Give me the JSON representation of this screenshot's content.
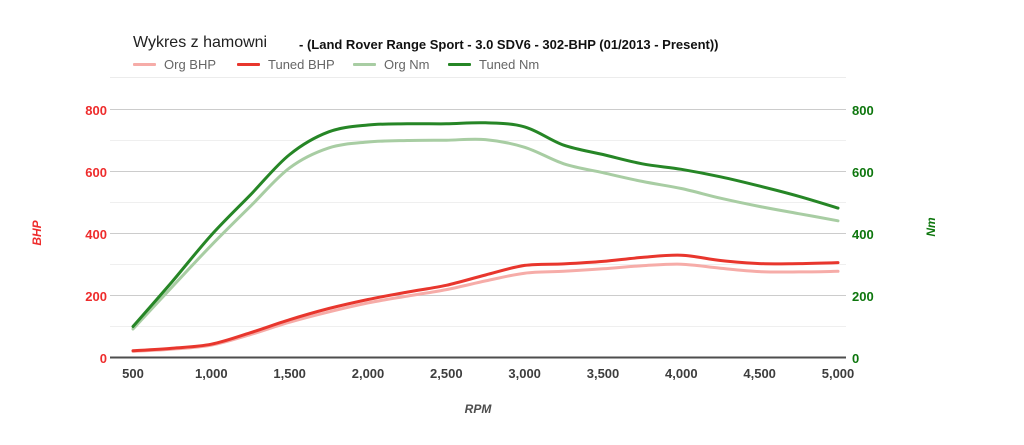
{
  "title": "Wykres z hamowni",
  "subtitle": "- (Land Rover Range Sport - 3.0 SDV6 - 302-BHP (01/2013 - Present))",
  "axes": {
    "x": {
      "title": "RPM",
      "tick_values": [
        500,
        1000,
        1500,
        2000,
        2500,
        3000,
        3500,
        4000,
        4500,
        5000
      ],
      "tick_labels": [
        "500",
        "1,000",
        "1,500",
        "2,000",
        "2,500",
        "3,000",
        "3,500",
        "4,000",
        "4,500",
        "5,000"
      ],
      "label_color": "#3d3d3d",
      "title_color": "#4d4d4d"
    },
    "y_left": {
      "title": "BHP",
      "tick_values": [
        0,
        200,
        400,
        600,
        800
      ],
      "tick_labels": [
        "0",
        "200",
        "400",
        "600",
        "800"
      ],
      "color": "#ee2c2c"
    },
    "y_right": {
      "title": "Nm",
      "tick_values": [
        0,
        200,
        400,
        600,
        800
      ],
      "tick_labels": [
        "0",
        "200",
        "400",
        "600",
        "800"
      ],
      "color": "#0d760d"
    }
  },
  "grid": {
    "major_color": "#cccccc",
    "minor_color": "#efefef",
    "zero_line_color": "#4d4d4d",
    "top_border_color": "#ececec"
  },
  "chart_data": {
    "type": "line",
    "title": "Wykres z hamowni - (Land Rover Range Sport - 3.0 SDV6 - 302-BHP (01/2013 - Present))",
    "xlabel": "RPM",
    "ylabel_left": "BHP",
    "ylabel_right": "Nm",
    "xlim": [
      500,
      5000
    ],
    "ylim": [
      0,
      800
    ],
    "grid": true,
    "legend_position": "top",
    "x": [
      500,
      750,
      1000,
      1250,
      1500,
      1750,
      2000,
      2250,
      2500,
      2750,
      3000,
      3250,
      3500,
      3750,
      4000,
      4250,
      4500,
      4750,
      5000
    ],
    "series": [
      {
        "name": "Org BHP",
        "color": "#f6aca8",
        "axis": "left",
        "values": [
          20,
          27,
          40,
          74,
          114,
          147,
          176,
          198,
          219,
          247,
          272,
          278,
          286,
          296,
          301,
          288,
          277,
          276,
          278
        ]
      },
      {
        "name": "Tuned BHP",
        "color": "#e8362d",
        "axis": "left",
        "values": [
          22,
          30,
          43,
          80,
          122,
          158,
          187,
          211,
          233,
          266,
          297,
          302,
          310,
          323,
          330,
          313,
          303,
          303,
          306
        ]
      },
      {
        "name": "Org Nm",
        "color": "#a8cda3",
        "axis": "right",
        "values": [
          92,
          228,
          362,
          488,
          612,
          676,
          695,
          700,
          701,
          703,
          678,
          625,
          596,
          568,
          545,
          514,
          487,
          464,
          441
        ]
      },
      {
        "name": "Tuned Nm",
        "color": "#268626",
        "axis": "right",
        "values": [
          100,
          245,
          395,
          525,
          655,
          728,
          750,
          754,
          754,
          757,
          744,
          685,
          655,
          625,
          607,
          583,
          553,
          520,
          482
        ]
      }
    ]
  }
}
